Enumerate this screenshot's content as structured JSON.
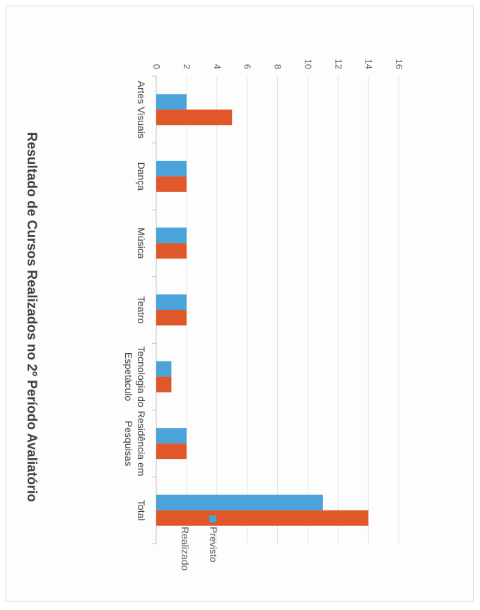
{
  "chart_data": {
    "type": "bar",
    "orientation": "horizontal",
    "title": "Resultado de Cursos Realizados no 2º Período Avaliatório",
    "categories": [
      "Artes Visuais",
      "Dança",
      "Música",
      "Teatro",
      "Tecnologia do Espetáculo",
      "Residência em Pesquisas",
      "Total"
    ],
    "category_lines": [
      [
        "Artes Visuais"
      ],
      [
        "Dança"
      ],
      [
        "Música"
      ],
      [
        "Teatro"
      ],
      [
        "Tecnologia do",
        "Espetáculo"
      ],
      [
        "Residência em",
        "Pesquisas"
      ],
      [
        "Total"
      ]
    ],
    "series": [
      {
        "name": "Previsto",
        "color": "#4aa3d9",
        "values": [
          2,
          2,
          2,
          2,
          1,
          2,
          11
        ]
      },
      {
        "name": "Realizado",
        "color": "#e0582a",
        "values": [
          5,
          2,
          2,
          2,
          1,
          2,
          14
        ]
      }
    ],
    "ylim": [
      0,
      16
    ],
    "yticks": [
      0,
      2,
      4,
      6,
      8,
      10,
      12,
      14,
      16
    ],
    "grid": true,
    "legend": "top-right",
    "rotation": "chart rotated 90 degrees clockwise"
  }
}
